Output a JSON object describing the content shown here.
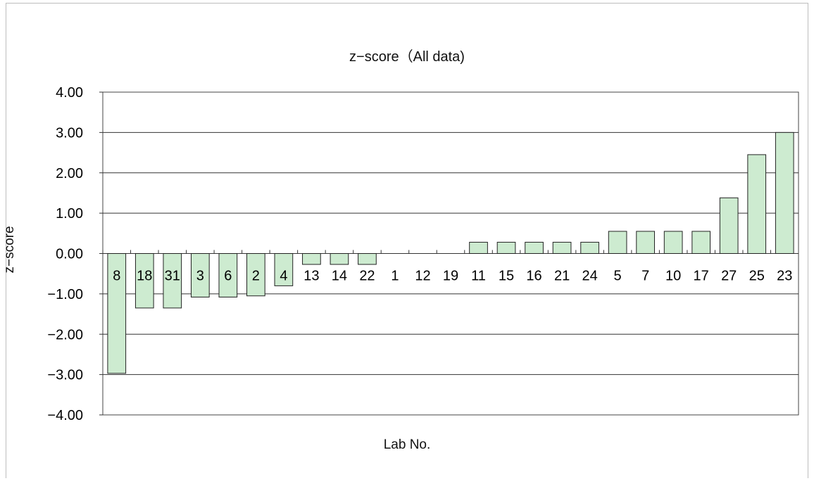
{
  "chart_data": {
    "type": "bar",
    "title": "z−score（All data)",
    "xlabel": "Lab No.",
    "ylabel": "z−score",
    "ylim": [
      -4,
      4
    ],
    "yticks": [
      "4.00",
      "3.00",
      "2.00",
      "1.00",
      "0.00",
      "−1.00",
      "−2.00",
      "−3.00",
      "−4.00"
    ],
    "categories": [
      "8",
      "18",
      "31",
      "3",
      "6",
      "2",
      "4",
      "13",
      "14",
      "22",
      "1",
      "12",
      "19",
      "11",
      "15",
      "16",
      "21",
      "24",
      "5",
      "7",
      "10",
      "17",
      "27",
      "25",
      "23"
    ],
    "values": [
      -2.97,
      -1.35,
      -1.35,
      -1.08,
      -1.08,
      -1.05,
      -0.8,
      -0.27,
      -0.27,
      -0.27,
      0,
      0,
      0,
      0.28,
      0.28,
      0.28,
      0.28,
      0.28,
      0.55,
      0.55,
      0.55,
      0.55,
      1.38,
      2.45,
      3.0
    ],
    "bar_color": "#cdebd0",
    "grid": true
  }
}
